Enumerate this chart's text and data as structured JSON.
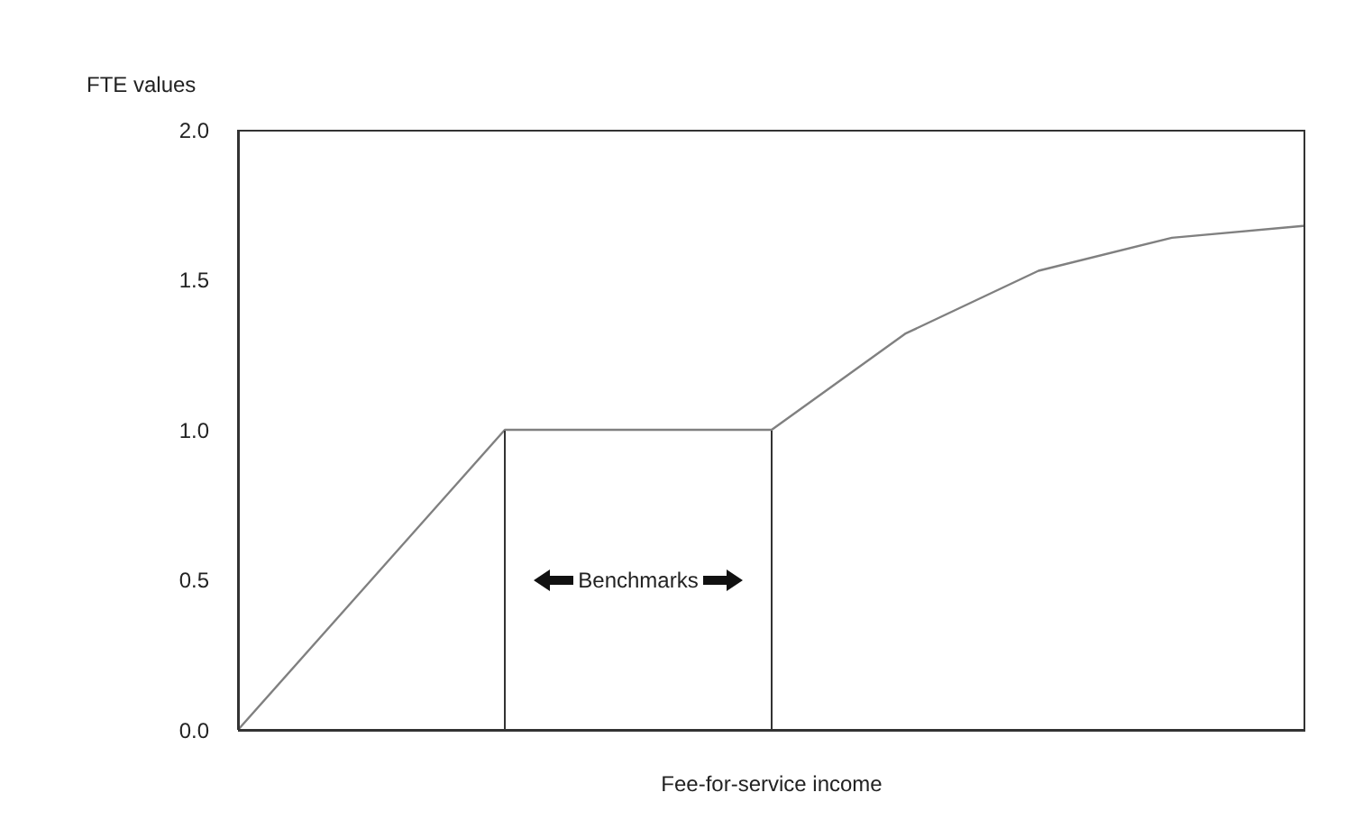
{
  "chart_data": {
    "type": "line",
    "xlabel": "Fee-for-service income",
    "ylabel": "FTE values",
    "categories": [
      null,
      null,
      null,
      null,
      null,
      null,
      null,
      null,
      null
    ],
    "series": [
      {
        "color": "#808080",
        "values": [
          0,
          0.5,
          1.0,
          1.0,
          1.0,
          1.32,
          1.53,
          1.64,
          1.68
        ]
      }
    ],
    "ylim": [
      0,
      2
    ],
    "yticks": [
      {
        "value": 0,
        "label": "0.0"
      },
      0.5,
      {
        "value": 1,
        "label": "1.0"
      },
      1.5,
      {
        "value": 2,
        "label": "2.0"
      }
    ],
    "grid": false,
    "legend": false,
    "marker": "none",
    "line_style": "solid",
    "annotations": [
      "Benchmarks"
    ]
  }
}
